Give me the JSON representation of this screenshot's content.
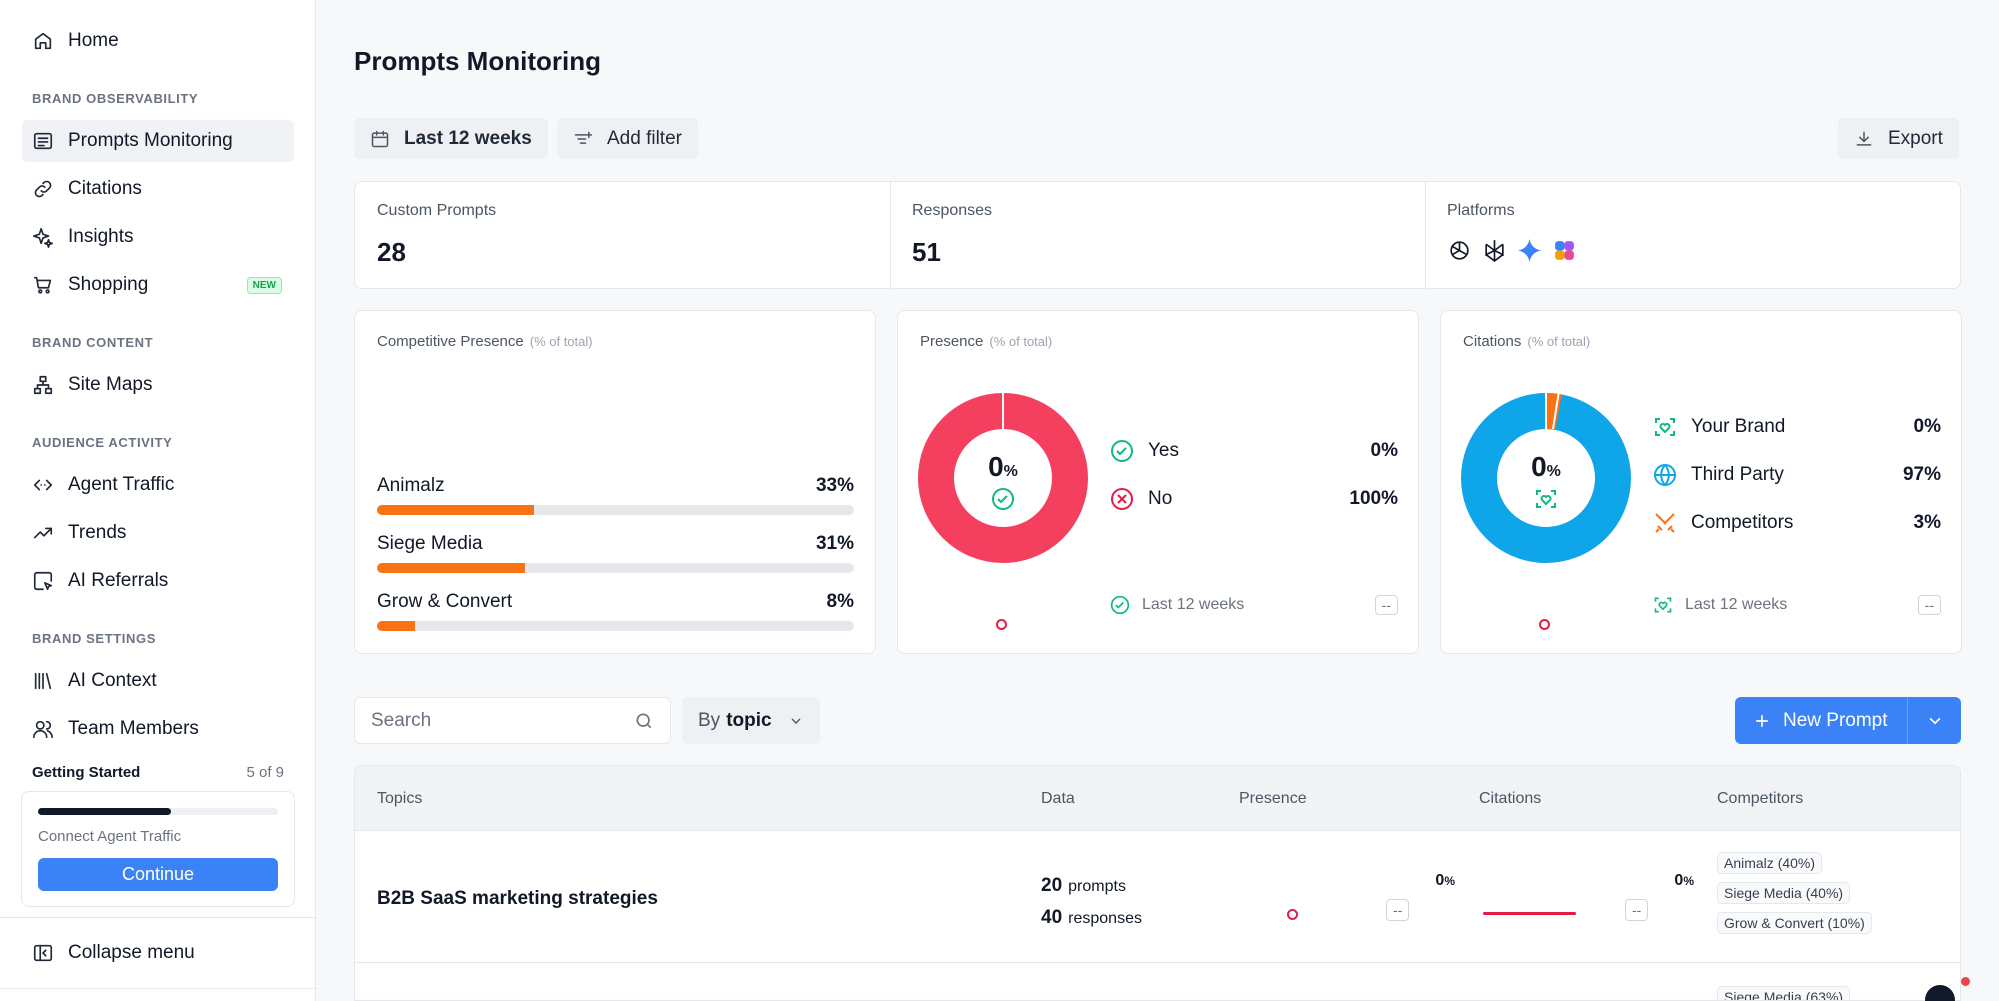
{
  "sidebar": {
    "home": "Home",
    "sections": {
      "brand_observability": "BRAND OBSERVABILITY",
      "brand_content": "BRAND CONTENT",
      "audience_activity": "AUDIENCE ACTIVITY",
      "brand_settings": "BRAND SETTINGS"
    },
    "items": {
      "prompts_monitoring": "Prompts Monitoring",
      "citations": "Citations",
      "insights": "Insights",
      "shopping": "Shopping",
      "shopping_badge": "NEW",
      "site_maps": "Site Maps",
      "agent_traffic": "Agent Traffic",
      "trends": "Trends",
      "ai_referrals": "AI Referrals",
      "ai_context": "AI Context",
      "team_members": "Team Members"
    },
    "getting_started": {
      "title": "Getting Started",
      "count": "5 of 9",
      "progress": 0.556,
      "task": "Connect Agent Traffic",
      "button": "Continue"
    },
    "collapse": "Collapse menu"
  },
  "header": {
    "title": "Prompts Monitoring",
    "date_filter": "Last 12 weeks",
    "add_filter": "Add filter",
    "export": "Export"
  },
  "stats": {
    "custom_prompts_label": "Custom Prompts",
    "custom_prompts_value": "28",
    "responses_label": "Responses",
    "responses_value": "51",
    "platforms_label": "Platforms",
    "platform_icons": [
      "openai-icon",
      "perplexity-icon",
      "gemini-icon",
      "copilot-icon"
    ]
  },
  "competitive_presence": {
    "title": "Competitive Presence",
    "subtitle": "(% of total)",
    "rows": [
      {
        "name": "Animalz",
        "pct": "33%",
        "value": 33
      },
      {
        "name": "Siege Media",
        "pct": "31%",
        "value": 31
      },
      {
        "name": "Grow & Convert",
        "pct": "8%",
        "value": 8
      }
    ]
  },
  "presence": {
    "title": "Presence",
    "subtitle": "(% of total)",
    "center_value": "0",
    "center_unit": "%",
    "yes_label": "Yes",
    "yes_value": "0%",
    "no_label": "No",
    "no_value": "100%",
    "period": "Last 12 weeks",
    "change": "--",
    "colors": {
      "yes": "#10b981",
      "no": "#f43f5e"
    }
  },
  "citations": {
    "title": "Citations",
    "subtitle": "(% of total)",
    "center_value": "0",
    "center_unit": "%",
    "your_brand_label": "Your Brand",
    "your_brand_value": "0%",
    "third_party_label": "Third Party",
    "third_party_value": "97%",
    "competitors_label": "Competitors",
    "competitors_value": "3%",
    "period": "Last 12 weeks",
    "change": "--",
    "colors": {
      "third_party": "#0ea5e9",
      "competitors": "#f97316"
    }
  },
  "controls": {
    "search_placeholder": "Search",
    "group_prefix": "By",
    "group_value": "topic",
    "new_prompt": "New Prompt"
  },
  "table": {
    "headers": {
      "topics": "Topics",
      "data": "Data",
      "presence": "Presence",
      "citations": "Citations",
      "competitors": "Competitors"
    },
    "rows": [
      {
        "topic": "B2B SaaS marketing strategies",
        "prompts_count": "20",
        "prompts_label": "prompts",
        "responses_count": "40",
        "responses_label": "responses",
        "presence_value": "0",
        "presence_unit": "%",
        "presence_change": "--",
        "citations_value": "0",
        "citations_unit": "%",
        "citations_change": "--",
        "competitors": [
          {
            "name": "Animalz",
            "pct": "(40%)"
          },
          {
            "name": "Siege Media",
            "pct": "(40%)"
          },
          {
            "name": "Grow & Convert",
            "pct": "(10%)"
          }
        ]
      },
      {
        "competitors": [
          {
            "name": "Siege Media",
            "pct": "(63%)"
          }
        ]
      }
    ]
  }
}
